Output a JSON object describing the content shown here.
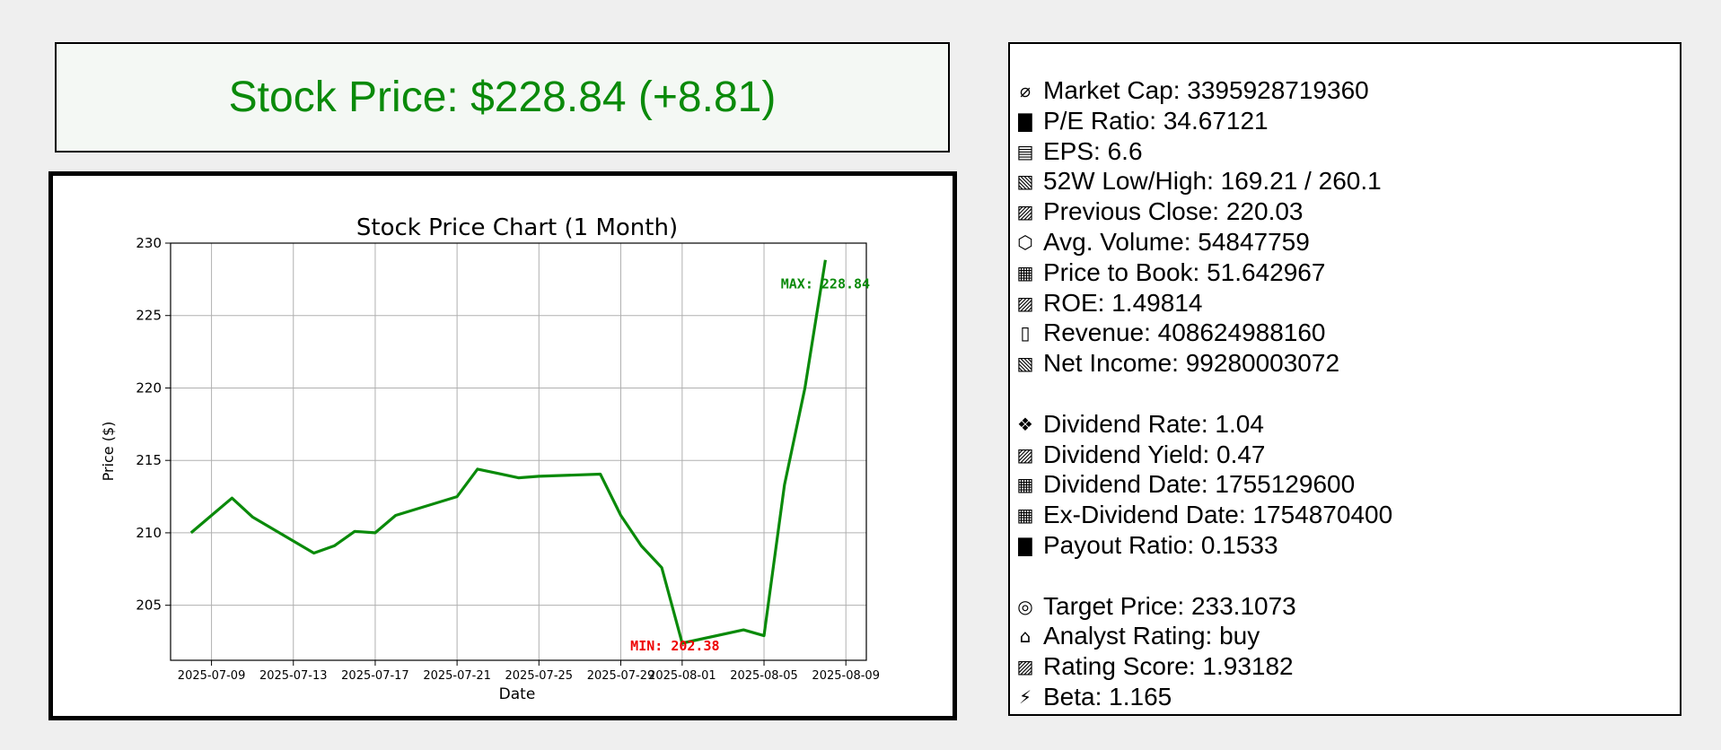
{
  "header": {
    "price_text": "Stock Price: $228.84 (+8.81)",
    "price_color": "#0a8a0a"
  },
  "info": {
    "groups": [
      [
        {
          "icon": "money-bag-icon",
          "glyph": "⌀",
          "text": "Market Cap: 3395928719360"
        },
        {
          "icon": "bar-chart-icon",
          "glyph": "▇",
          "text": "P/E Ratio: 34.67121"
        },
        {
          "icon": "ledger-icon",
          "glyph": "▤",
          "text": "EPS: 6.6"
        },
        {
          "icon": "chart-decreasing-icon",
          "glyph": "▧",
          "text": "52W Low/High: 169.21 / 260.1"
        },
        {
          "icon": "chart-increasing-icon",
          "glyph": "▨",
          "text": "Previous Close: 220.03"
        },
        {
          "icon": "package-icon",
          "glyph": "⬡",
          "text": "Avg. Volume: 54847759"
        },
        {
          "icon": "numbers-icon",
          "glyph": "▦",
          "text": "Price to Book: 51.642967"
        },
        {
          "icon": "chart-increasing-icon",
          "glyph": "▨",
          "text": "ROE: 1.49814"
        },
        {
          "icon": "receipt-icon",
          "glyph": "▯",
          "text": "Revenue: 408624988160"
        },
        {
          "icon": "chart-decreasing-icon",
          "glyph": "▧",
          "text": "Net Income: 99280003072"
        }
      ],
      [
        {
          "icon": "money-wings-icon",
          "glyph": "❖",
          "text": "Dividend Rate: 1.04"
        },
        {
          "icon": "chart-increasing-icon",
          "glyph": "▨",
          "text": "Dividend Yield: 0.47"
        },
        {
          "icon": "calendar-icon",
          "glyph": "▦",
          "text": "Dividend Date: 1755129600"
        },
        {
          "icon": "calendar-icon",
          "glyph": "▦",
          "text": "Ex-Dividend Date: 1754870400"
        },
        {
          "icon": "bar-chart-icon",
          "glyph": "▇",
          "text": "Payout Ratio: 0.1533"
        }
      ],
      [
        {
          "icon": "target-icon",
          "glyph": "◎",
          "text": "Target Price: 233.1073"
        },
        {
          "icon": "bank-icon",
          "glyph": "⌂",
          "text": "Analyst Rating: buy"
        },
        {
          "icon": "chart-increasing-icon",
          "glyph": "▨",
          "text": "Rating Score: 1.93182"
        },
        {
          "icon": "lightning-icon",
          "glyph": "⚡",
          "text": "Beta: 1.165"
        }
      ]
    ]
  },
  "chart_data": {
    "type": "line",
    "title": "Stock Price Chart (1 Month)",
    "xlabel": "Date",
    "ylabel": "Price ($)",
    "ylim": [
      201.2,
      230.0
    ],
    "xlim": [
      "2025-07-07",
      "2025-08-10"
    ],
    "grid": true,
    "line_color": "#0a8a0a",
    "y_ticks": [
      205,
      210,
      215,
      220,
      225,
      230
    ],
    "x_ticks": [
      "2025-07-09",
      "2025-07-13",
      "2025-07-17",
      "2025-07-21",
      "2025-07-25",
      "2025-07-29",
      "2025-08-01",
      "2025-08-05",
      "2025-08-09"
    ],
    "x": [
      "2025-07-08",
      "2025-07-09",
      "2025-07-10",
      "2025-07-11",
      "2025-07-14",
      "2025-07-15",
      "2025-07-16",
      "2025-07-17",
      "2025-07-18",
      "2025-07-21",
      "2025-07-22",
      "2025-07-23",
      "2025-07-24",
      "2025-07-25",
      "2025-07-28",
      "2025-07-29",
      "2025-07-30",
      "2025-07-31",
      "2025-08-01",
      "2025-08-04",
      "2025-08-05",
      "2025-08-06",
      "2025-08-07",
      "2025-08-08"
    ],
    "values": [
      210.0,
      211.2,
      212.4,
      211.1,
      208.6,
      209.1,
      210.1,
      210.0,
      211.2,
      212.5,
      214.4,
      214.1,
      213.8,
      213.9,
      214.05,
      211.2,
      209.1,
      207.6,
      202.38,
      203.3,
      202.9,
      213.3,
      220.0,
      228.84
    ],
    "annotations": [
      {
        "text": "MIN: 202.38",
        "x": "2025-08-01",
        "y": 202.38,
        "color": "#ee0000"
      },
      {
        "text": "MAX: 228.84",
        "x": "2025-08-08",
        "y": 228.84,
        "color": "#0a8a0a"
      }
    ]
  }
}
